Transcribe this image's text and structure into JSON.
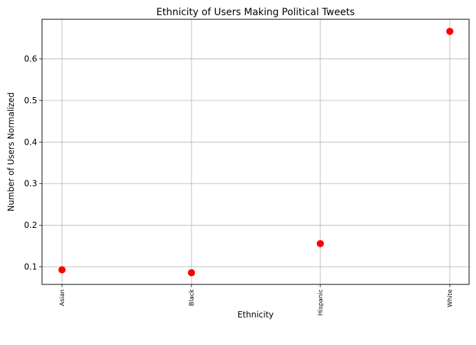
{
  "chart_data": {
    "type": "scatter",
    "title": "Ethnicity of Users Making Political Tweets",
    "xlabel": "Ethnicity",
    "ylabel": "Number of Users Normalized",
    "categories": [
      "Asian",
      "Black",
      "Hispanic",
      "White"
    ],
    "values": [
      0.093,
      0.086,
      0.156,
      0.666
    ],
    "ylim": [
      0.058,
      0.695
    ],
    "yticks": [
      "0.1",
      "0.2",
      "0.3",
      "0.4",
      "0.5",
      "0.6"
    ],
    "grid": true,
    "marker_color": "#ff0000"
  }
}
